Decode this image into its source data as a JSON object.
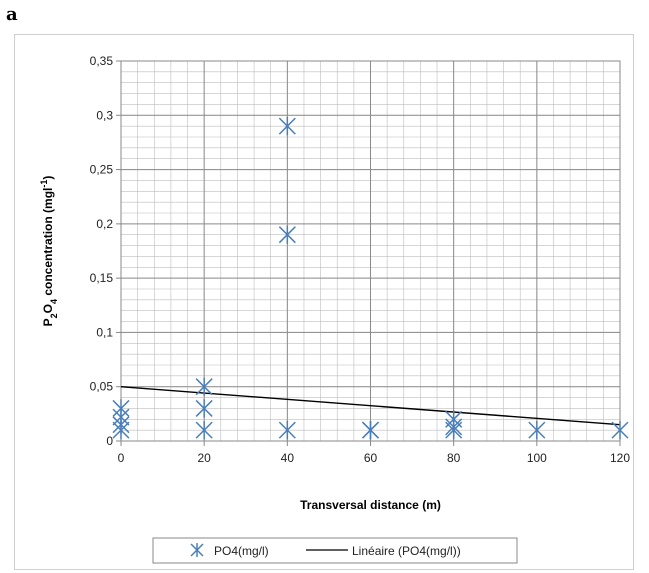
{
  "panel_label": "a",
  "chart_data": {
    "type": "scatter",
    "title": "",
    "xlabel": "Transversal distance  (m)",
    "ylabel": "P2O4 concentration (mgl-1)",
    "ylabel_parts": {
      "main": "P",
      "sub1": "2",
      "mid": "O",
      "sub2": "4",
      "rest": " concentration  (mgl",
      "sup": "-1",
      "end": ")"
    },
    "xlim": [
      0,
      120
    ],
    "ylim": [
      0,
      0.35
    ],
    "x_ticks": [
      0,
      20,
      40,
      60,
      80,
      100,
      120
    ],
    "x_tick_labels": [
      "0",
      "20",
      "40",
      "60",
      "80",
      "100",
      "120"
    ],
    "y_ticks": [
      0,
      0.05,
      0.1,
      0.15,
      0.2,
      0.25,
      0.3,
      0.35
    ],
    "y_tick_labels": [
      "0",
      "0,05",
      "0,1",
      "0,15",
      "0,2",
      "0,25",
      "0,3",
      "0,35"
    ],
    "grid": true,
    "legend_position": "bottom",
    "series": [
      {
        "name": "PO4(mg/l)",
        "type": "scatter",
        "marker": "asterisk",
        "color": "#4a7ebb",
        "x": [
          0,
          0,
          0,
          0,
          20,
          20,
          20,
          40,
          40,
          40,
          60,
          60,
          80,
          80,
          80,
          100,
          120
        ],
        "y": [
          0.03,
          0.022,
          0.015,
          0.01,
          0.05,
          0.03,
          0.01,
          0.29,
          0.19,
          0.01,
          0.01,
          0.01,
          0.02,
          0.013,
          0.01,
          0.01,
          0.01
        ]
      },
      {
        "name": "Linéaire (PO4(mg/l))",
        "type": "line",
        "color": "#000000",
        "x": [
          0,
          120
        ],
        "y": [
          0.05,
          0.015
        ]
      }
    ]
  }
}
